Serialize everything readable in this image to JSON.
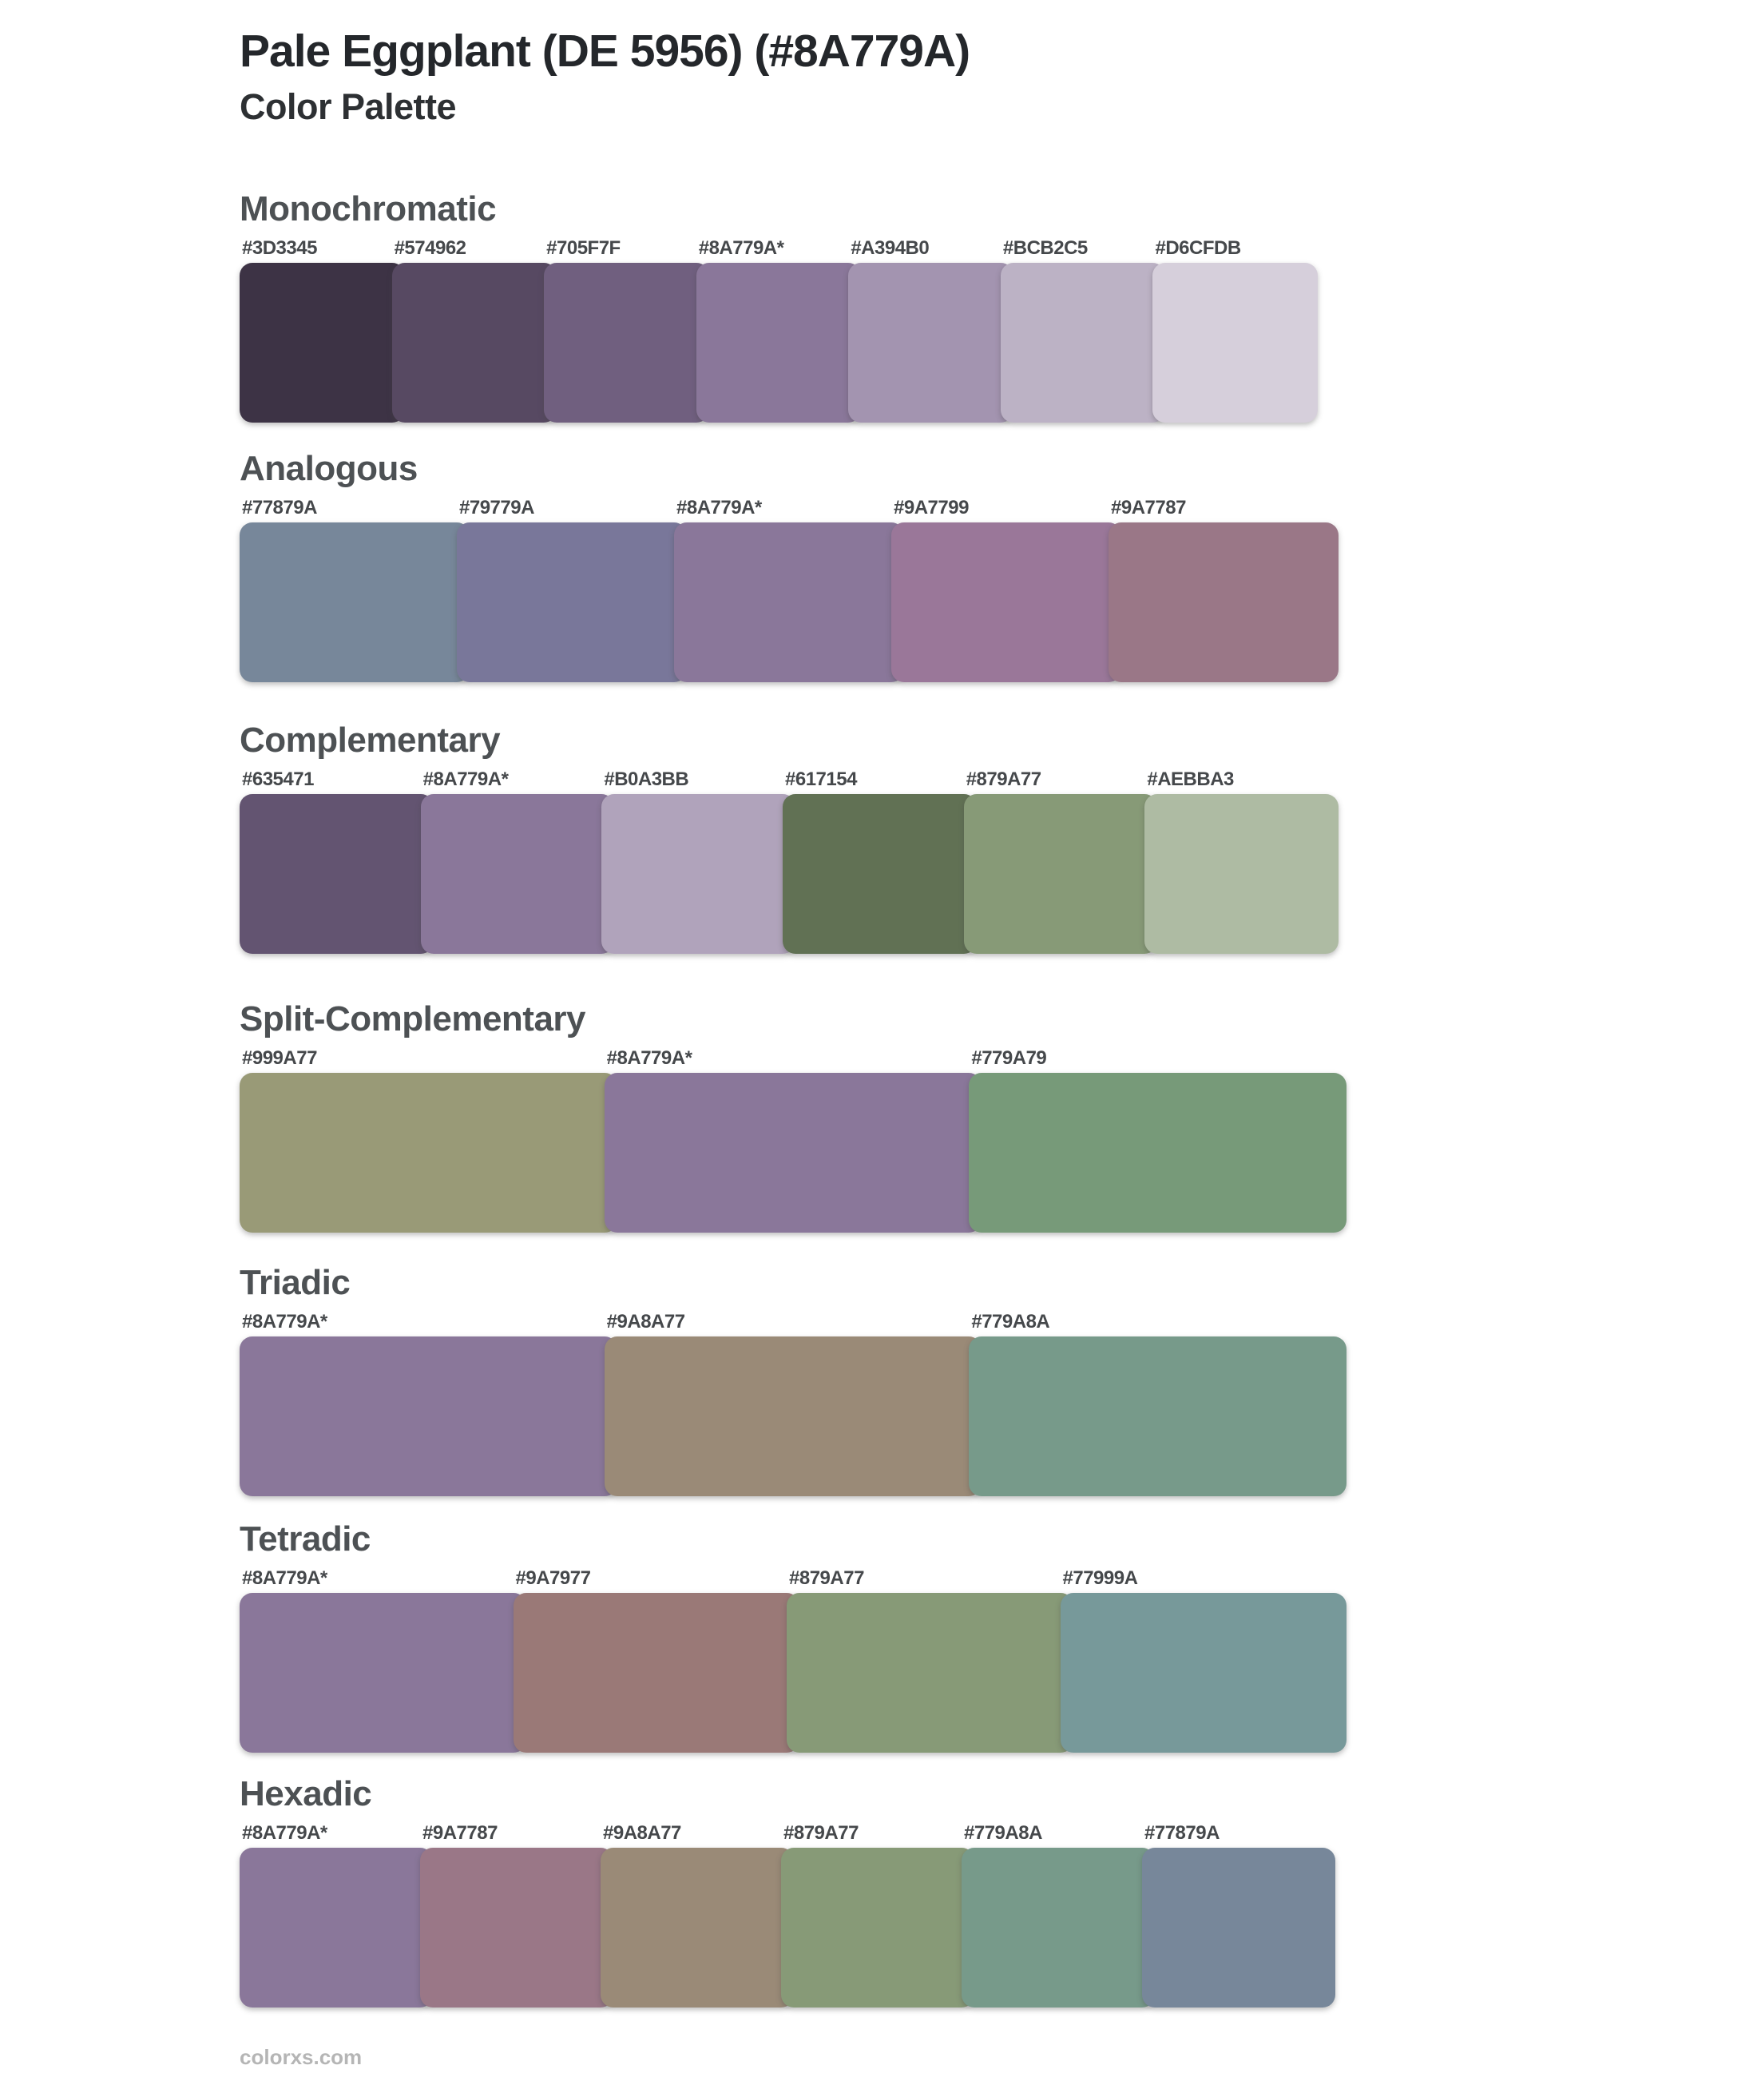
{
  "page": {
    "title": "Pale Eggplant (DE 5956) (#8A779A)",
    "subtitle": "Color Palette",
    "watermark": "colorxs.com",
    "background_color": "#FFFFFF",
    "base_color": "#8A779A"
  },
  "sections": [
    {
      "heading": "Monochromatic",
      "swatches": [
        {
          "label": "#3D3345",
          "color": "#3D3345"
        },
        {
          "label": "#574962",
          "color": "#574962"
        },
        {
          "label": "#705F7F",
          "color": "#705F7F"
        },
        {
          "label": "#8A779A*",
          "color": "#8A779A"
        },
        {
          "label": "#A394B0",
          "color": "#A394B0"
        },
        {
          "label": "#BCB2C5",
          "color": "#BCB2C5"
        },
        {
          "label": "#D6CFDB",
          "color": "#D6CFDB"
        }
      ]
    },
    {
      "heading": "Analogous",
      "swatches": [
        {
          "label": "#77879A",
          "color": "#77879A"
        },
        {
          "label": "#79779A",
          "color": "#79779A"
        },
        {
          "label": "#8A779A*",
          "color": "#8A779A"
        },
        {
          "label": "#9A7799",
          "color": "#9A7799"
        },
        {
          "label": "#9A7787",
          "color": "#9A7787"
        }
      ]
    },
    {
      "heading": "Complementary",
      "swatches": [
        {
          "label": "#635471",
          "color": "#635471"
        },
        {
          "label": "#8A779A*",
          "color": "#8A779A"
        },
        {
          "label": "#B0A3BB",
          "color": "#B0A3BB"
        },
        {
          "label": "#617154",
          "color": "#617154"
        },
        {
          "label": "#879A77",
          "color": "#879A77"
        },
        {
          "label": "#AEBBA3",
          "color": "#AEBBA3"
        }
      ]
    },
    {
      "heading": "Split-Complementary",
      "swatches": [
        {
          "label": "#999A77",
          "color": "#999A77"
        },
        {
          "label": "#8A779A*",
          "color": "#8A779A"
        },
        {
          "label": "#779A79",
          "color": "#779A79"
        }
      ]
    },
    {
      "heading": "Triadic",
      "swatches": [
        {
          "label": "#8A779A*",
          "color": "#8A779A"
        },
        {
          "label": "#9A8A77",
          "color": "#9A8A77"
        },
        {
          "label": "#779A8A",
          "color": "#779A8A"
        }
      ]
    },
    {
      "heading": "Tetradic",
      "swatches": [
        {
          "label": "#8A779A*",
          "color": "#8A779A"
        },
        {
          "label": "#9A7977",
          "color": "#9A7977"
        },
        {
          "label": "#879A77",
          "color": "#879A77"
        },
        {
          "label": "#77999A",
          "color": "#77999A"
        }
      ]
    },
    {
      "heading": "Hexadic",
      "swatches": [
        {
          "label": "#8A779A*",
          "color": "#8A779A"
        },
        {
          "label": "#9A7787",
          "color": "#9A7787"
        },
        {
          "label": "#9A8A77",
          "color": "#9A8A77"
        },
        {
          "label": "#879A77",
          "color": "#879A77"
        },
        {
          "label": "#779A8A",
          "color": "#779A8A"
        },
        {
          "label": "#77879A",
          "color": "#77879A"
        }
      ]
    }
  ]
}
